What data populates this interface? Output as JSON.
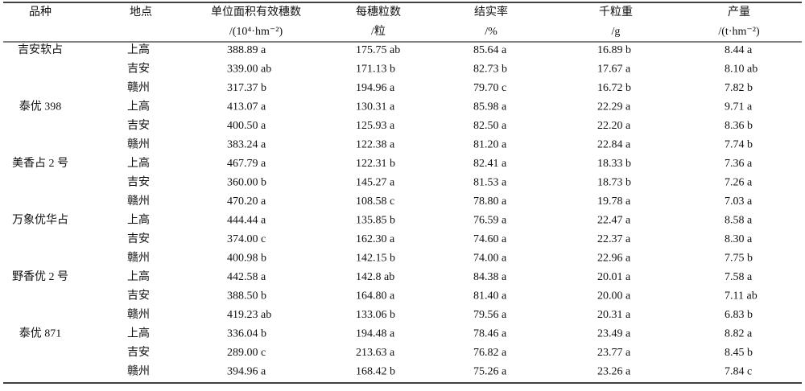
{
  "table": {
    "header": [
      [
        "品种"
      ],
      [
        "地点"
      ],
      [
        "单位面积有效穗数",
        "/(10⁴·hm⁻²)"
      ],
      [
        "每穗粒数",
        "/粒"
      ],
      [
        "结实率",
        "/%"
      ],
      [
        "千粒重",
        "/g"
      ],
      [
        "产量",
        "/(t·hm⁻²)"
      ]
    ],
    "groups": [
      {
        "variety": "吉安软占",
        "rows": [
          [
            "上高",
            "388.89 a",
            "175.75 ab",
            "85.64 a",
            "16.89 b",
            "8.44 a"
          ],
          [
            "吉安",
            "339.00 ab",
            "171.13 b",
            "82.73 b",
            "17.67 a",
            "8.10 ab"
          ],
          [
            "赣州",
            "317.37 b",
            "194.96 a",
            "79.70 c",
            "16.72 b",
            "7.82 b"
          ]
        ]
      },
      {
        "variety": "泰优 398",
        "rows": [
          [
            "上高",
            "413.07 a",
            "130.31 a",
            "85.98 a",
            "22.29 a",
            "9.71 a"
          ],
          [
            "吉安",
            "400.50 a",
            "125.93 a",
            "82.50 a",
            "22.20 a",
            "8.36 b"
          ],
          [
            "赣州",
            "383.24 a",
            "122.38 a",
            "81.20 a",
            "22.84 a",
            "7.74 b"
          ]
        ]
      },
      {
        "variety": "美香占 2 号",
        "rows": [
          [
            "上高",
            "467.79 a",
            "122.31 b",
            "82.41 a",
            "18.33 b",
            "7.36 a"
          ],
          [
            "吉安",
            "360.00 b",
            "145.27 a",
            "81.53 a",
            "18.73 b",
            "7.26 a"
          ],
          [
            "赣州",
            "470.20 a",
            "108.58 c",
            "78.80 a",
            "19.78 a",
            "7.03 a"
          ]
        ]
      },
      {
        "variety": "万象优华占",
        "rows": [
          [
            "上高",
            "444.44 a",
            "135.85 b",
            "76.59 a",
            "22.47 a",
            "8.58 a"
          ],
          [
            "吉安",
            "374.00 c",
            "162.30 a",
            "74.60 a",
            "22.37 a",
            "8.30 a"
          ],
          [
            "赣州",
            "400.98 b",
            "142.15 b",
            "74.00 a",
            "22.96 a",
            "7.75 b"
          ]
        ]
      },
      {
        "variety": "野香优 2 号",
        "rows": [
          [
            "上高",
            "442.58 a",
            "142.8 ab",
            "84.38 a",
            "20.01 a",
            "7.58 a"
          ],
          [
            "吉安",
            "388.50 b",
            "164.80 a",
            "81.40 a",
            "20.00 a",
            "7.11 ab"
          ],
          [
            "赣州",
            "419.23 ab",
            "133.06 b",
            "79.56 a",
            "20.31 a",
            "6.83 b"
          ]
        ]
      },
      {
        "variety": "泰优 871",
        "rows": [
          [
            "上高",
            "336.04 b",
            "194.48 a",
            "78.46 a",
            "23.49 a",
            "8.82 a"
          ],
          [
            "吉安",
            "289.00 c",
            "213.63 a",
            "76.82 a",
            "23.77 a",
            "8.45 b"
          ],
          [
            "赣州",
            "394.96 a",
            "168.42 b",
            "75.26 a",
            "23.26 a",
            "7.84 c"
          ]
        ]
      }
    ]
  }
}
